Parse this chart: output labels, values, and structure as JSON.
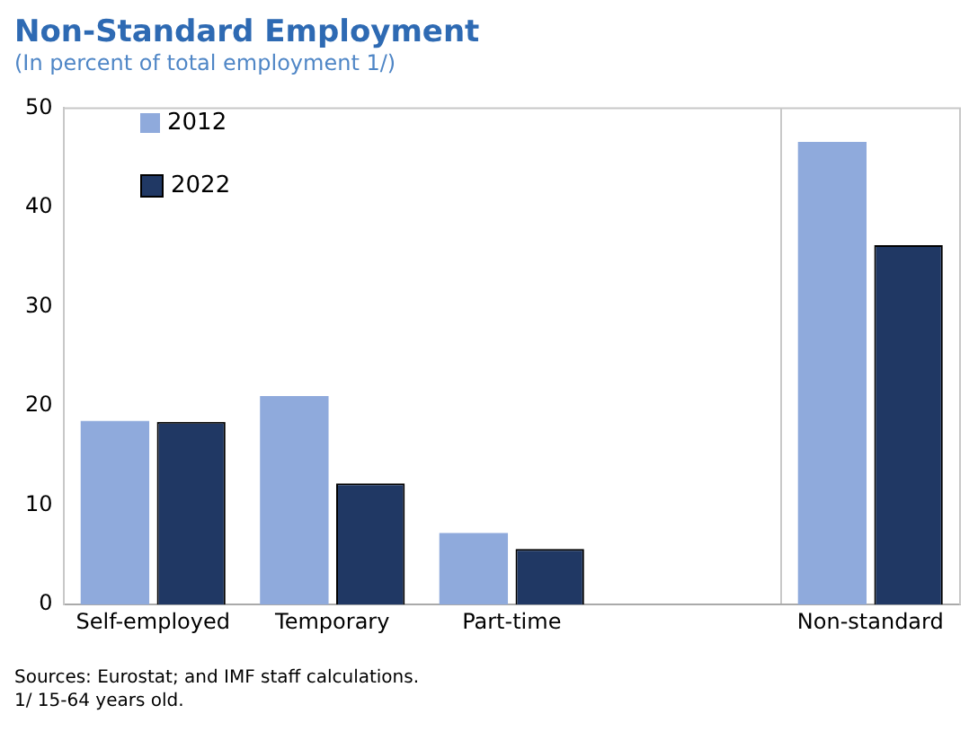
{
  "chart_data": {
    "type": "bar",
    "title": "Non-Standard Employment",
    "subtitle": "(In percent of total employment 1/)",
    "categories": [
      "Self-employed",
      "Temporary",
      "Part-time",
      null,
      "Non-standard"
    ],
    "series": [
      {
        "name": "2012",
        "color": "#8faadc",
        "values": [
          18.5,
          21.0,
          7.2,
          null,
          46.6
        ]
      },
      {
        "name": "2022",
        "color": "#203864",
        "values": [
          18.4,
          12.2,
          5.6,
          null,
          36.2
        ]
      }
    ],
    "ylim": [
      0,
      50
    ],
    "yticks": [
      0,
      10,
      20,
      30,
      40,
      50
    ],
    "grid": false,
    "legend": "top left",
    "annotations": [
      "Sources: Eurostat; and IMF staff calculations.",
      "1/ 15-64 years old."
    ]
  }
}
